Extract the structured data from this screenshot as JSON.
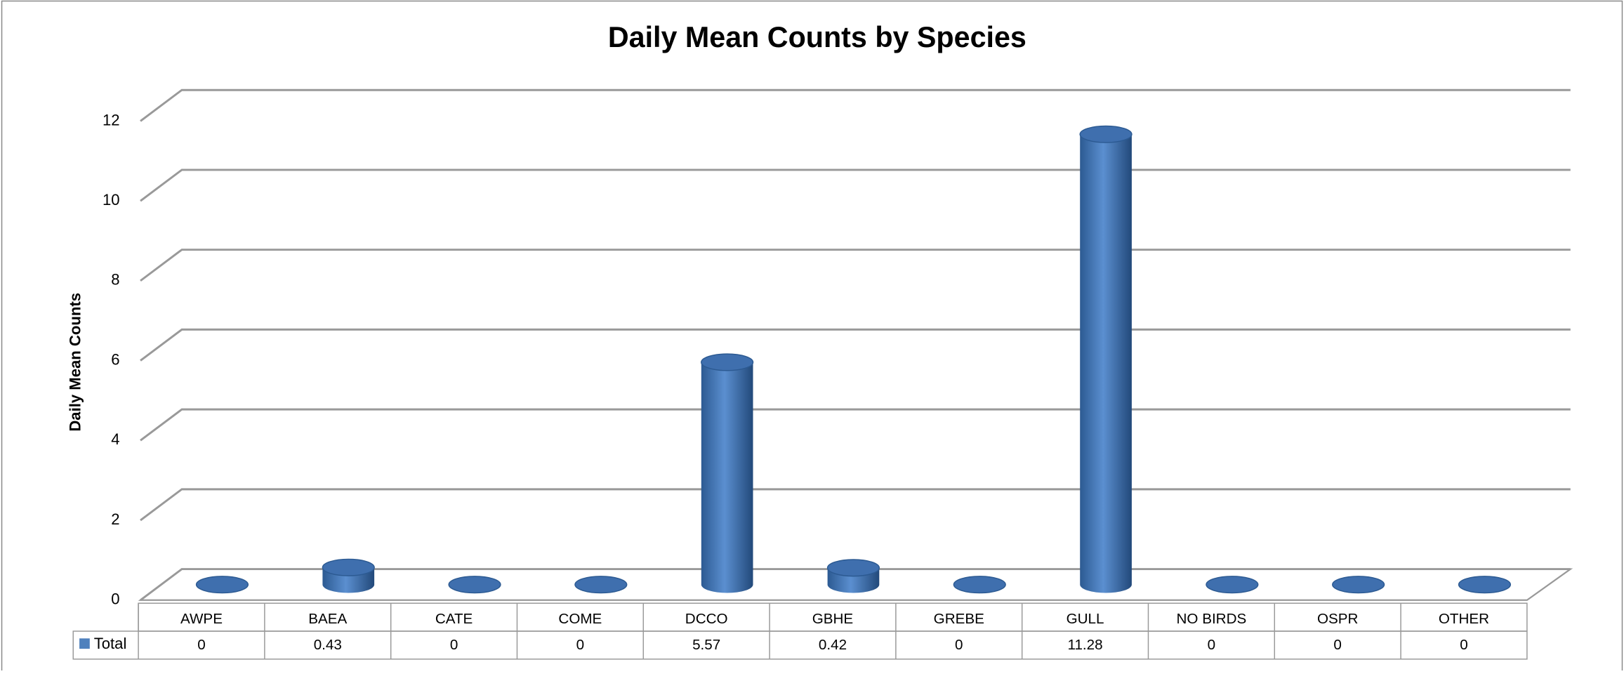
{
  "chart_data": {
    "type": "bar3d-cylinder",
    "title": "Daily Mean Counts by Species",
    "ylabel": "Daily Mean Counts",
    "categories": [
      "AWPE",
      "BAEA",
      "CATE",
      "COME",
      "DCCO",
      "GBHE",
      "GREBE",
      "GULL",
      "NO BIRDS",
      "OSPR",
      "OTHER"
    ],
    "series": [
      {
        "name": "Total",
        "color": "#4f81bd",
        "values": [
          0,
          0.43,
          0,
          0,
          5.57,
          0.42,
          0,
          11.28,
          0,
          0,
          0
        ]
      }
    ],
    "ylim": [
      0,
      12
    ],
    "yticks": [
      0,
      2,
      4,
      6,
      8,
      10,
      12
    ],
    "grid": true,
    "data_table": true
  }
}
